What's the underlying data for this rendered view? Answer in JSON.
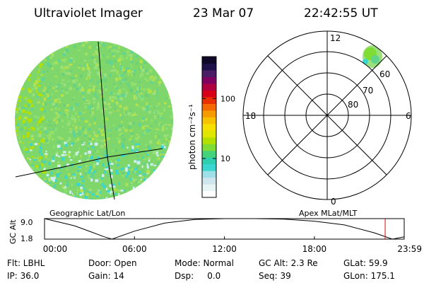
{
  "header": {
    "instrument": "Ultraviolet Imager",
    "date": "23 Mar 07",
    "time": "22:42:55 UT"
  },
  "colorbar": {
    "label": "photon cm⁻²s⁻¹",
    "ticks": [
      "100",
      "10"
    ],
    "tick_values": [
      100,
      10
    ],
    "range_log": [
      0.35,
      2.7
    ],
    "colors": [
      "#ffffff",
      "#e6f4f6",
      "#cfe6ee",
      "#9fe0e8",
      "#3ad6d0",
      "#2fd0b0",
      "#44d27a",
      "#7fdc34",
      "#b4e000",
      "#dfe600",
      "#f6e000",
      "#f7c200",
      "#f79c00",
      "#f46a00",
      "#ea3000",
      "#d80018",
      "#b00040",
      "#800060",
      "#4a1c66",
      "#20104a",
      "#100828"
    ]
  },
  "polar": {
    "mlt_labels": {
      "top": "12",
      "bottom": "0",
      "left": "18",
      "right": "6"
    },
    "lat_labels": [
      "60",
      "70",
      "80"
    ]
  },
  "strip": {
    "left_label": "Geographic Lat/Lon",
    "right_label": "Apex MLat/MLT",
    "axis_title": "GC Alt",
    "y_ticks": [
      "9.0",
      "1.8"
    ],
    "y_range": [
      1.8,
      9.0
    ],
    "x_ticks": [
      "00:00",
      "06:00",
      "12:00",
      "18:00",
      "23:59"
    ],
    "current_marker_hour": 22.72
  },
  "footer": {
    "filter": "Flt: LBHL",
    "door": "Door: Open",
    "mode": "Mode: Normal",
    "gc_alt": "GC Alt: 2.3 Re",
    "glat": "GLat: 59.9",
    "ip": "IP: 36.0",
    "gain": "Gain: 14",
    "dsp": "Dsp:     0.0",
    "seq": "Seq: 39",
    "glon": "GLon: 175.1"
  },
  "chart_data": {
    "type": "line",
    "x": [
      0,
      2,
      4,
      4.5,
      6,
      8,
      10,
      12,
      14,
      16,
      18,
      20,
      22,
      23.2,
      23.99
    ],
    "y": [
      9.0,
      6.5,
      2.6,
      1.8,
      4.6,
      7.4,
      8.7,
      9.0,
      9.0,
      8.8,
      8.1,
      6.8,
      4.0,
      1.8,
      2.6
    ],
    "xlabel": "",
    "ylabel": "GC Alt",
    "xlim": [
      0,
      23.99
    ],
    "ylim": [
      1.8,
      9.0
    ]
  }
}
